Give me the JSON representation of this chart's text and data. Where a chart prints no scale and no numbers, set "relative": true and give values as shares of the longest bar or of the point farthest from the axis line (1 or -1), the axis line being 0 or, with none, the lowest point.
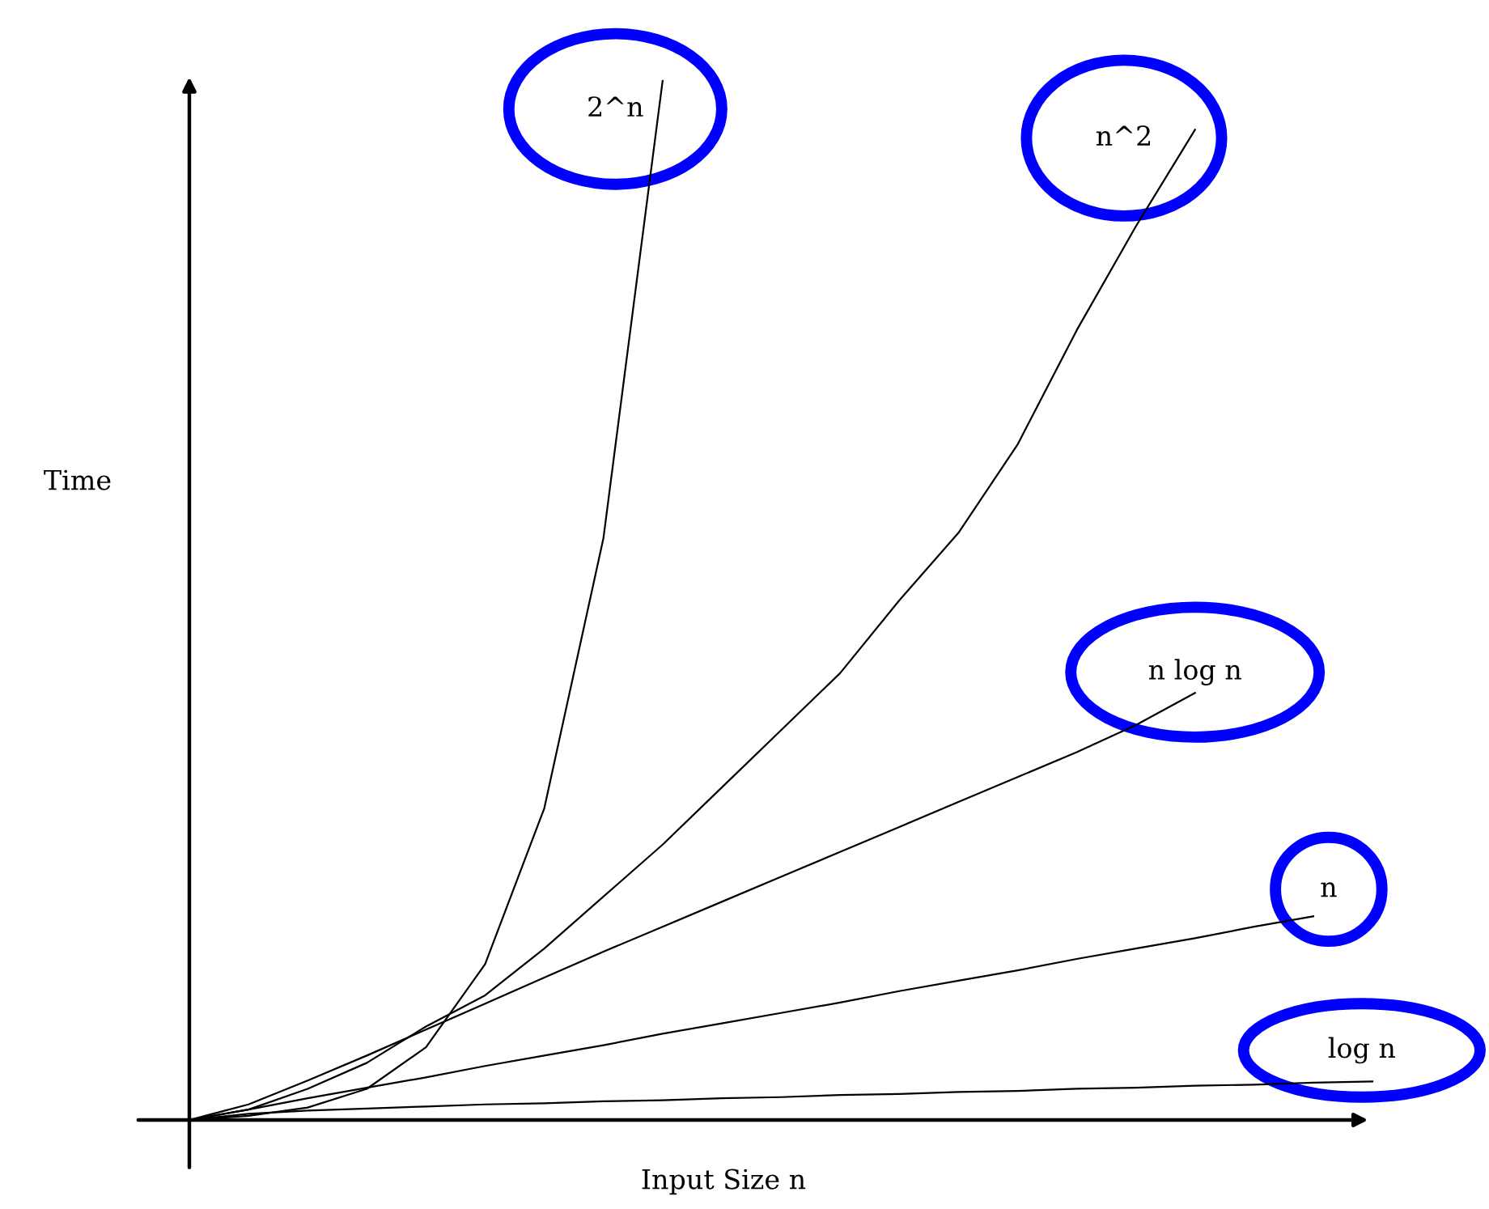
{
  "chart_data": {
    "type": "line",
    "relative": true,
    "xlabel": "Input Size n",
    "ylabel": "Time",
    "legend": false,
    "marker": "none",
    "line_style": "solid",
    "categories": [
      null,
      null,
      null,
      null,
      null,
      null,
      null,
      null,
      null,
      null,
      null,
      null,
      null,
      null,
      null,
      null,
      null,
      null,
      null,
      null,
      null
    ],
    "series": [
      {
        "name": "2^n",
        "color": "#000000",
        "values": [
          0,
          0.004,
          0.012,
          0.03,
          0.07,
          0.15,
          0.3,
          0.56,
          1,
          null,
          null,
          null,
          null,
          null,
          null,
          null,
          null,
          null,
          null,
          null,
          null
        ]
      },
      {
        "name": "n^2",
        "color": "#000000",
        "values": [
          0,
          0.01,
          0.03,
          0.055,
          0.09,
          0.12,
          0.165,
          0.215,
          0.265,
          0.32,
          0.375,
          0.43,
          0.5,
          0.565,
          0.65,
          0.76,
          0.86,
          0.953,
          null,
          null,
          null
        ]
      },
      {
        "name": "n log n",
        "color": "#000000",
        "values": [
          0,
          0.015,
          0.038,
          0.062,
          0.087,
          0.112,
          0.137,
          0.162,
          0.186,
          0.21,
          0.234,
          0.258,
          0.282,
          0.306,
          0.33,
          0.354,
          0.38,
          0.411,
          null,
          null,
          null
        ]
      },
      {
        "name": "n",
        "color": "#000000",
        "values": [
          0,
          0.01,
          0.021,
          0.031,
          0.041,
          0.052,
          0.062,
          0.072,
          0.083,
          0.093,
          0.103,
          0.113,
          0.124,
          0.134,
          0.144,
          0.155,
          0.165,
          0.175,
          0.186,
          0.196,
          null
        ]
      },
      {
        "name": "log n",
        "color": "#000000",
        "values": [
          0,
          0.006,
          0.009,
          0.011,
          0.013,
          0.015,
          0.016,
          0.018,
          0.019,
          0.021,
          0.022,
          0.024,
          0.025,
          0.027,
          0.028,
          0.03,
          0.031,
          0.033,
          0.034,
          0.036,
          0.037
        ]
      }
    ]
  }
}
